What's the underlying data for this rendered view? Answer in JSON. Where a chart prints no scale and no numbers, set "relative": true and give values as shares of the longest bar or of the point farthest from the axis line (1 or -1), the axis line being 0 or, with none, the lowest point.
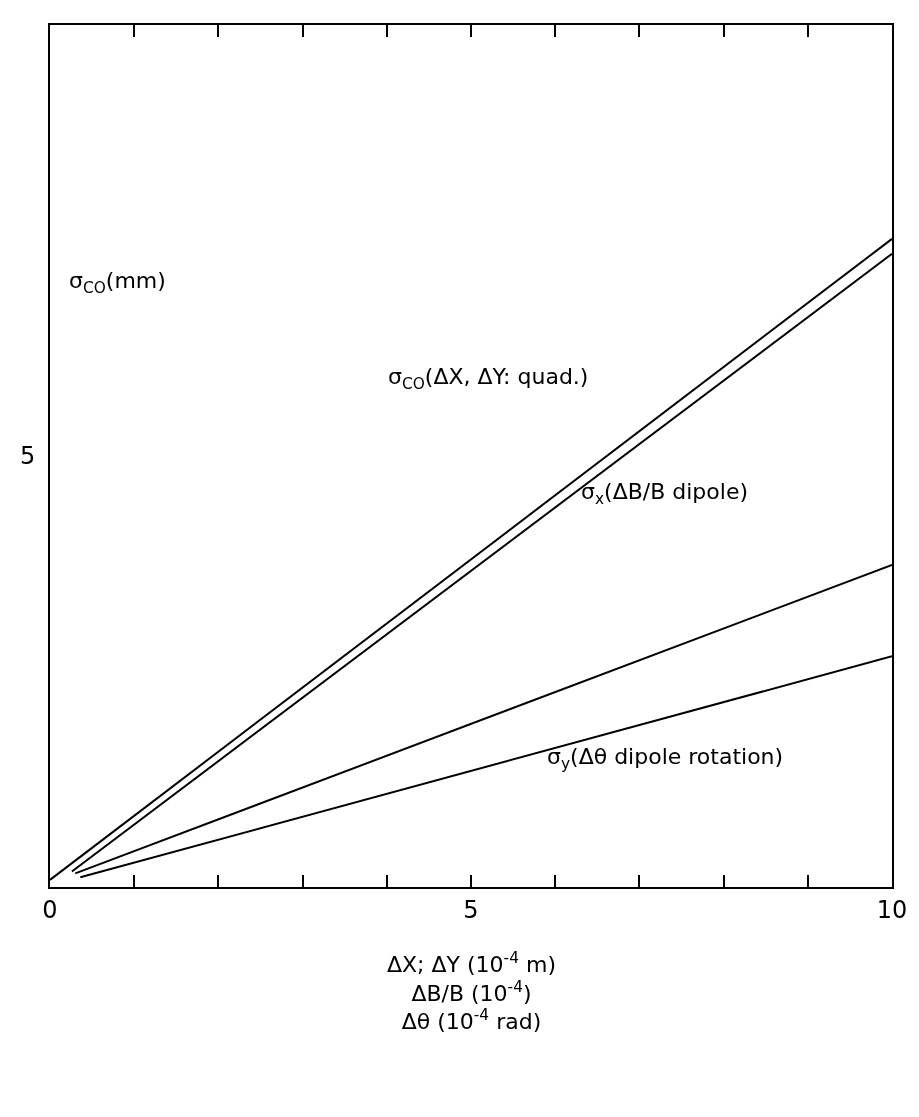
{
  "chart_data": {
    "type": "line",
    "relative": true,
    "ylabel": "σ$_{CO}$(mm)",
    "xlabel": "ΔX; ΔY (10$^{-4}$ m)\nΔB/B (10$^{-4}$)\nΔθ (10$^{-4}$ rad)",
    "xlim": [
      0,
      10
    ],
    "xticks": [
      0,
      {
        "value": 1,
        "label": null
      },
      {
        "value": 2,
        "label": null
      },
      {
        "value": 3,
        "label": null
      },
      {
        "value": 4,
        "label": null
      },
      5,
      {
        "value": 6,
        "label": null
      },
      {
        "value": 7,
        "label": null
      },
      {
        "value": 8,
        "label": null
      },
      {
        "value": 9,
        "label": null
      },
      10
    ],
    "marker": "none",
    "line_style": "solid",
    "series": [
      {
        "color": "#000000",
        "x": [
          0,
          10
        ],
        "values": [
          0.011,
          1
        ]
      },
      {
        "color": "#000000",
        "x": [
          0.26,
          10
        ],
        "values": [
          0.024,
          0.977
        ]
      },
      {
        "color": "#000000",
        "x": [
          0.3,
          10
        ],
        "values": [
          0.021,
          0.497
        ]
      },
      {
        "color": "#000000",
        "x": [
          0.36,
          10
        ],
        "values": [
          0.015,
          0.356
        ]
      }
    ],
    "annotations": [
      "σ$_{CO}$(ΔX, ΔY: quad.)",
      "σ$_{x}$(ΔB/B dipole)",
      "σ$_{y}$(Δθ dipole rotation)",
      "5"
    ]
  }
}
